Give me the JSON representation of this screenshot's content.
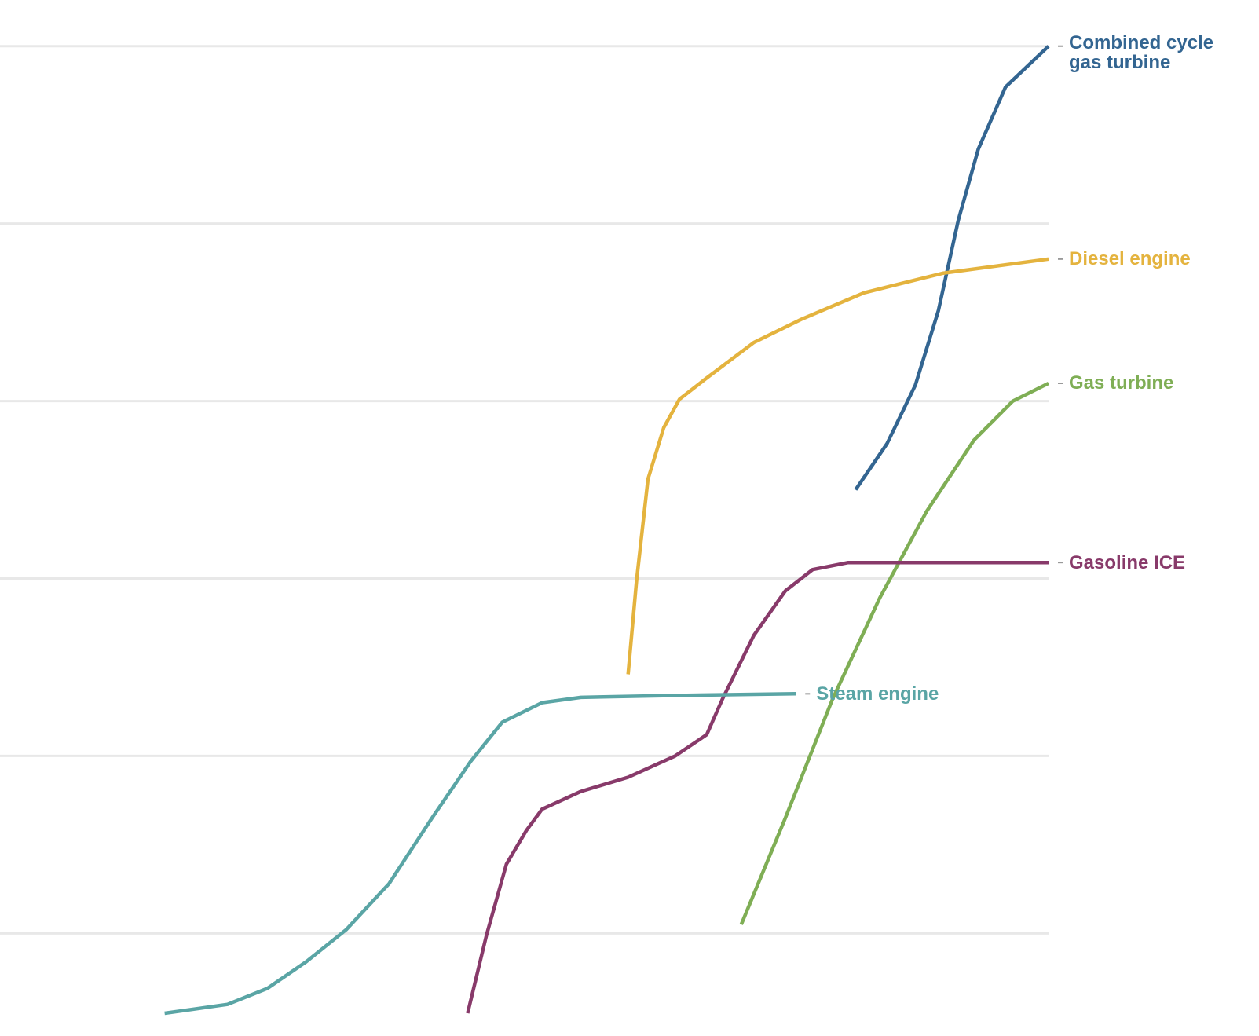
{
  "chart_data": {
    "type": "line",
    "xlim": [
      0,
      100
    ],
    "ylim": [
      -0.45,
      5.26
    ],
    "yticks": [
      0,
      1,
      2,
      3,
      4,
      5
    ],
    "grid": true,
    "series": [
      {
        "name": "Combined cycle\ngas turbine",
        "color": "#336591",
        "x": [
          81.6,
          84.6,
          87.3,
          89.5,
          91.4,
          93.3,
          95.9,
          100
        ],
        "values": [
          2.5,
          2.76,
          3.09,
          3.51,
          4.02,
          4.42,
          4.77,
          5.0
        ]
      },
      {
        "name": "Diesel engine",
        "color": "#e4b33e",
        "x": [
          59.9,
          60.7,
          61.8,
          63.3,
          64.8,
          67.4,
          71.9,
          76.4,
          82.4,
          89.9,
          100
        ],
        "values": [
          1.46,
          1.98,
          2.56,
          2.85,
          3.01,
          3.13,
          3.33,
          3.46,
          3.61,
          3.72,
          3.8
        ]
      },
      {
        "name": "Gas turbine",
        "color": "#7fae55",
        "x": [
          70.7,
          74.9,
          79.4,
          83.9,
          88.4,
          92.9,
          96.6,
          100
        ],
        "values": [
          0.05,
          0.65,
          1.32,
          1.89,
          2.38,
          2.78,
          3.0,
          3.1
        ]
      },
      {
        "name": "Gasoline ICE",
        "color": "#883a6a",
        "x": [
          44.6,
          46.4,
          48.3,
          50.2,
          51.7,
          55.4,
          59.9,
          64.4,
          67.4,
          68.9,
          71.9,
          74.9,
          77.5,
          80.9,
          100
        ],
        "values": [
          -0.45,
          -0.01,
          0.39,
          0.58,
          0.7,
          0.8,
          0.88,
          1.0,
          1.12,
          1.32,
          1.68,
          1.93,
          2.05,
          2.09,
          2.09
        ]
      },
      {
        "name": "Steam engine",
        "color": "#5aa5a5",
        "x": [
          15.7,
          21.7,
          25.5,
          29.2,
          33.0,
          37.1,
          41.2,
          44.9,
          47.9,
          51.7,
          55.4,
          63.7,
          75.9
        ],
        "values": [
          -0.45,
          -0.4,
          -0.31,
          -0.16,
          0.02,
          0.28,
          0.65,
          0.97,
          1.19,
          1.3,
          1.33,
          1.34,
          1.35
        ]
      }
    ]
  }
}
